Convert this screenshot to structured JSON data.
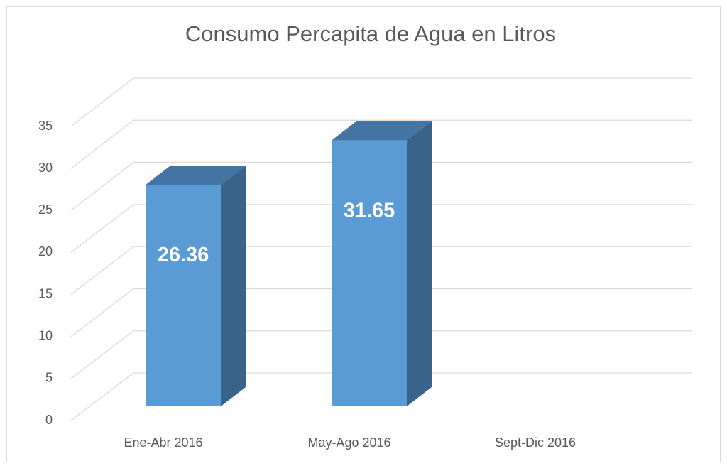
{
  "chart_data": {
    "type": "bar3d",
    "title": "Consumo Percapita de Agua en Litros",
    "categories": [
      "Ene-Abr 2016",
      "May-Ago 2016",
      "Sept-Dic 2016"
    ],
    "values": [
      26.36,
      31.65,
      null
    ],
    "color": "#5b9bd5",
    "ylim": [
      0,
      35
    ],
    "yticks": [
      0,
      5,
      10,
      15,
      20,
      25,
      30,
      35
    ],
    "grid": true
  }
}
